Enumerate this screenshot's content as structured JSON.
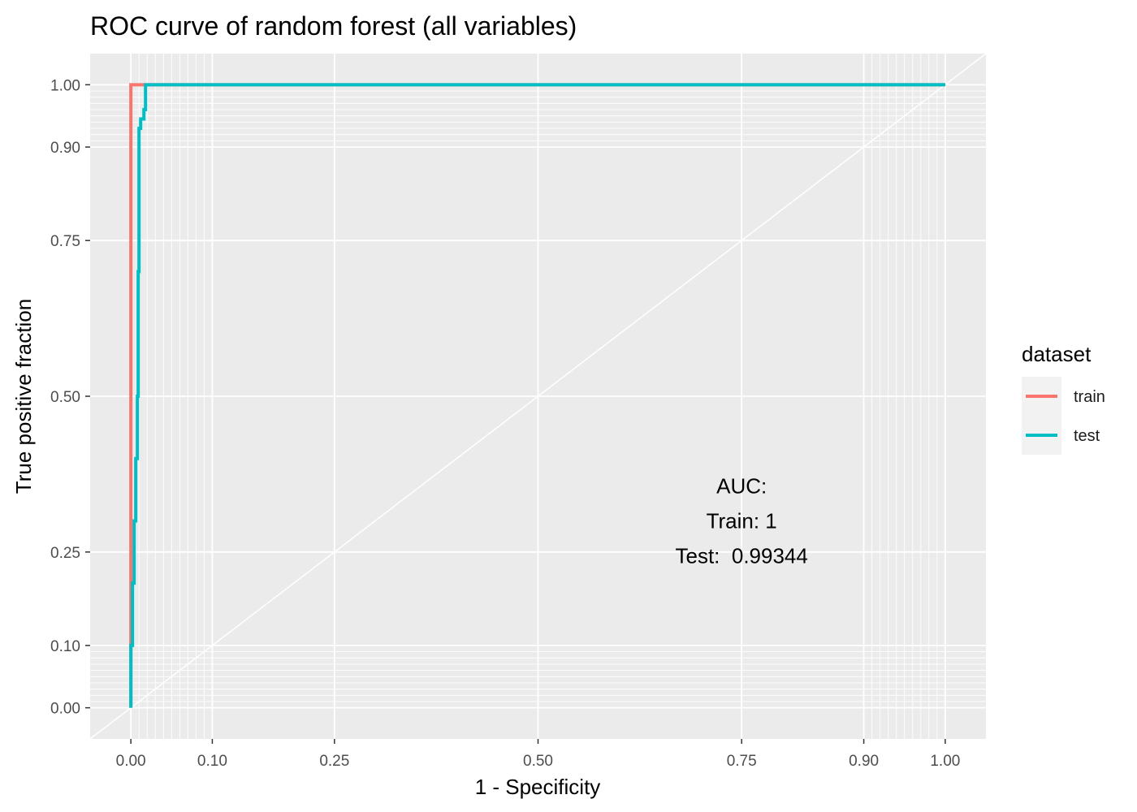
{
  "chart_data": {
    "type": "line",
    "title": "ROC curve of random forest (all variables)",
    "xlabel": "1 - Specificity",
    "ylabel": "True positive fraction",
    "xlim": [
      -0.05,
      1.05
    ],
    "ylim": [
      -0.05,
      1.05
    ],
    "x_ticks": [
      0.0,
      0.1,
      0.25,
      0.5,
      0.75,
      0.9,
      1.0
    ],
    "x_tick_labels": [
      "0.00",
      "0.10",
      "0.25",
      "0.50",
      "0.75",
      "0.90",
      "1.00"
    ],
    "y_ticks": [
      0.0,
      0.1,
      0.25,
      0.5,
      0.75,
      0.9,
      1.0
    ],
    "y_tick_labels": [
      "0.00",
      "0.10",
      "0.25",
      "0.50",
      "0.75",
      "0.90",
      "1.00"
    ],
    "minor_ticks": [
      0.01,
      0.02,
      0.03,
      0.04,
      0.05,
      0.06,
      0.07,
      0.08,
      0.09,
      0.91,
      0.92,
      0.93,
      0.94,
      0.95,
      0.96,
      0.97,
      0.98,
      0.99
    ],
    "grid": true,
    "diagonal": true,
    "legend": {
      "title": "dataset",
      "position": "right",
      "entries": [
        {
          "label": "train",
          "color": "#F8766D"
        },
        {
          "label": "test",
          "color": "#00BFC4"
        }
      ]
    },
    "series": [
      {
        "name": "train",
        "color": "#F8766D",
        "x": [
          0.0,
          0.0,
          0.0,
          0.0,
          0.02,
          1.0
        ],
        "y": [
          0.0,
          0.3,
          0.7,
          1.0,
          1.0,
          1.0
        ]
      },
      {
        "name": "test",
        "color": "#00BFC4",
        "x": [
          0.0,
          0.0,
          0.002,
          0.002,
          0.004,
          0.004,
          0.006,
          0.006,
          0.008,
          0.008,
          0.009,
          0.009,
          0.01,
          0.01,
          0.012,
          0.012,
          0.016,
          0.016,
          0.018,
          0.018,
          1.0
        ],
        "y": [
          0.0,
          0.1,
          0.1,
          0.2,
          0.2,
          0.3,
          0.3,
          0.4,
          0.4,
          0.5,
          0.5,
          0.7,
          0.7,
          0.93,
          0.93,
          0.945,
          0.945,
          0.96,
          0.96,
          1.0,
          1.0
        ]
      }
    ],
    "annotation": {
      "lines": [
        "AUC:",
        "Train: 1",
        "Test:  0.99344"
      ],
      "x": 0.75,
      "y": 0.3
    },
    "colors": {
      "panel_bg": "#EBEBEB",
      "grid": "#FFFFFF",
      "tick_text": "#4D4D4D",
      "tick_mark": "#333333",
      "legend_key_bg": "#F2F2F2"
    }
  }
}
